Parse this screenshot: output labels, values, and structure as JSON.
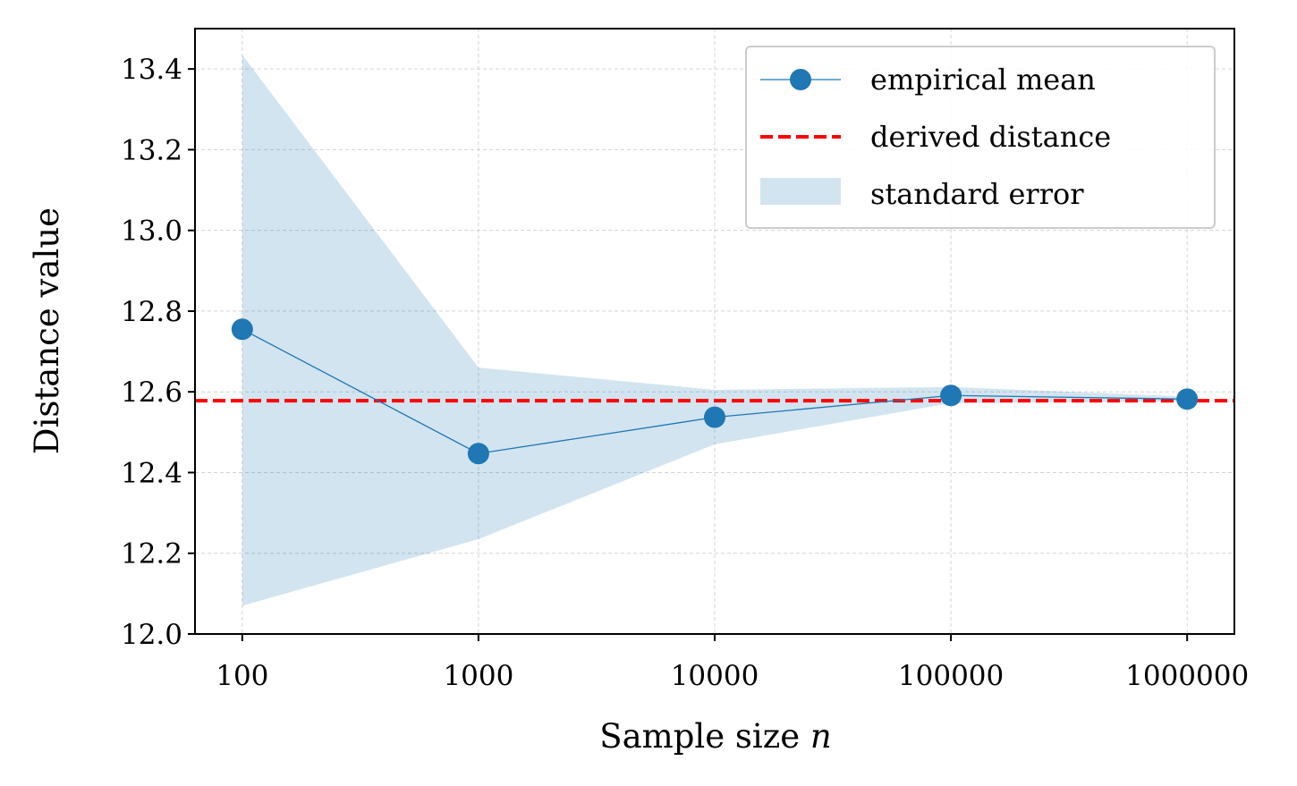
{
  "chart_data": {
    "type": "line",
    "xlabel": "Sample size",
    "xlabel_var": "n",
    "ylabel": "Distance value",
    "x_scale": "log",
    "x": [
      100,
      1000,
      10000,
      100000,
      1000000
    ],
    "x_tick_labels": [
      "100",
      "1000",
      "10000",
      "100000",
      "1000000"
    ],
    "ylim": [
      12.0,
      13.5
    ],
    "y_ticks": [
      12.0,
      12.2,
      12.4,
      12.6,
      12.8,
      13.0,
      13.2,
      13.4
    ],
    "y_tick_labels": [
      "12.0",
      "12.2",
      "12.4",
      "12.6",
      "12.8",
      "13.0",
      "13.2",
      "13.4"
    ],
    "grid": true,
    "legend_position": "top-right",
    "series": [
      {
        "name": "empirical mean",
        "kind": "line-marker",
        "color": "#1f77b4",
        "values": [
          12.755,
          12.447,
          12.537,
          12.591,
          12.582
        ]
      },
      {
        "name": "derived distance",
        "kind": "hline-dashed",
        "color": "#ff0000",
        "value": 12.578
      },
      {
        "name": "standard error",
        "kind": "band",
        "color": "#1f77b4",
        "lower": [
          12.07,
          12.235,
          12.47,
          12.572,
          12.576
        ],
        "upper": [
          13.435,
          12.66,
          12.605,
          12.612,
          12.588
        ]
      }
    ]
  }
}
